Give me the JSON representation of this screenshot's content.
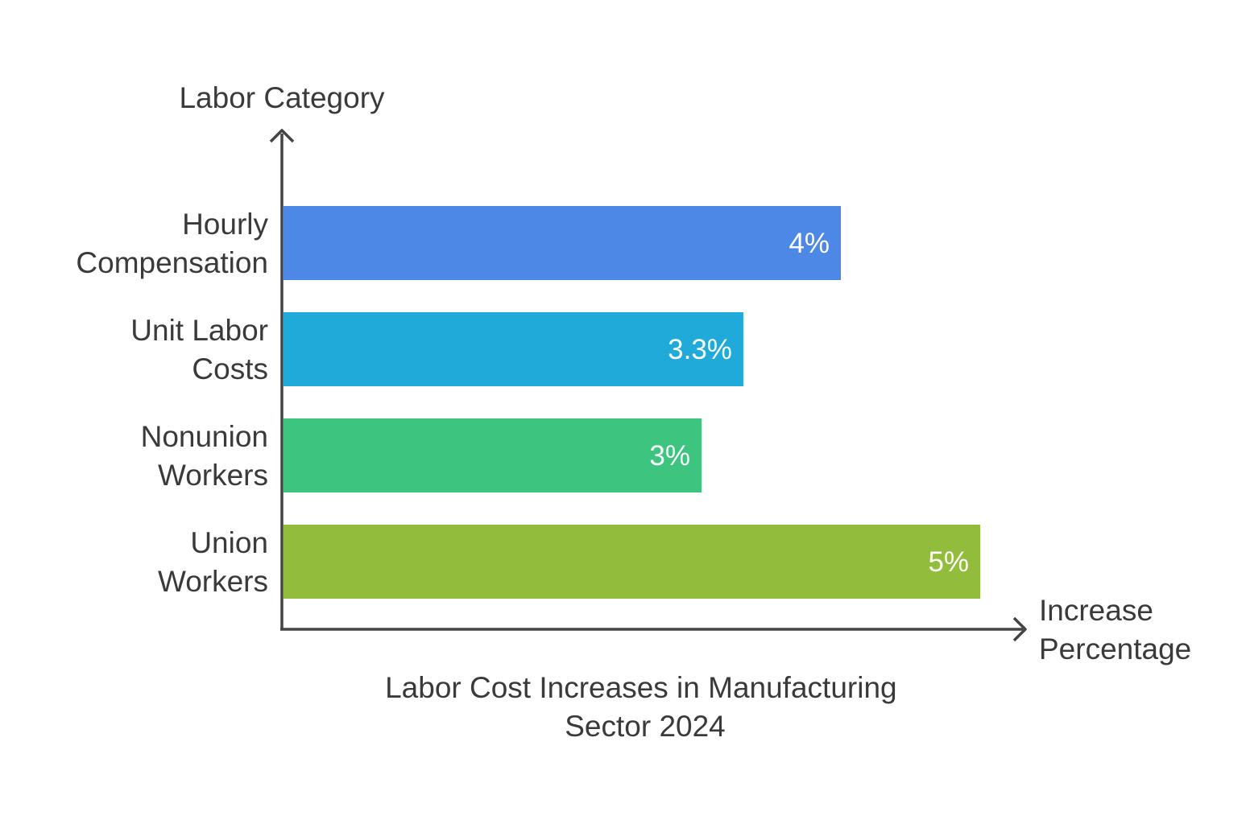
{
  "chart_data": {
    "type": "bar",
    "orientation": "horizontal",
    "title": "Labor Cost Increases in Manufacturing Sector 2024",
    "title_lines": [
      "Labor Cost Increases in Manufacturing",
      "Sector 2024"
    ],
    "ylabel": "Labor Category",
    "xlabel": "Increase Percentage",
    "xlabel_lines": [
      "Increase",
      "Percentage"
    ],
    "xlim": [
      0,
      5.78
    ],
    "grid": false,
    "categories": [
      "Hourly Compensation",
      "Unit Labor Costs",
      "Nonunion Workers",
      "Union Workers"
    ],
    "category_lines": [
      [
        "Hourly",
        "Compensation"
      ],
      [
        "Unit Labor",
        "Costs"
      ],
      [
        "Nonunion",
        "Workers"
      ],
      [
        "Union",
        "Workers"
      ]
    ],
    "values": [
      4,
      3.3,
      3,
      5
    ],
    "value_labels": [
      "4%",
      "3.3%",
      "3%",
      "5%"
    ],
    "colors": [
      "#4e88e6",
      "#1faad9",
      "#3dc580",
      "#92bc3c"
    ],
    "label_colors": [
      "#33384a",
      "#2e3a40",
      "#2e3a34",
      "#393d2c"
    ]
  }
}
